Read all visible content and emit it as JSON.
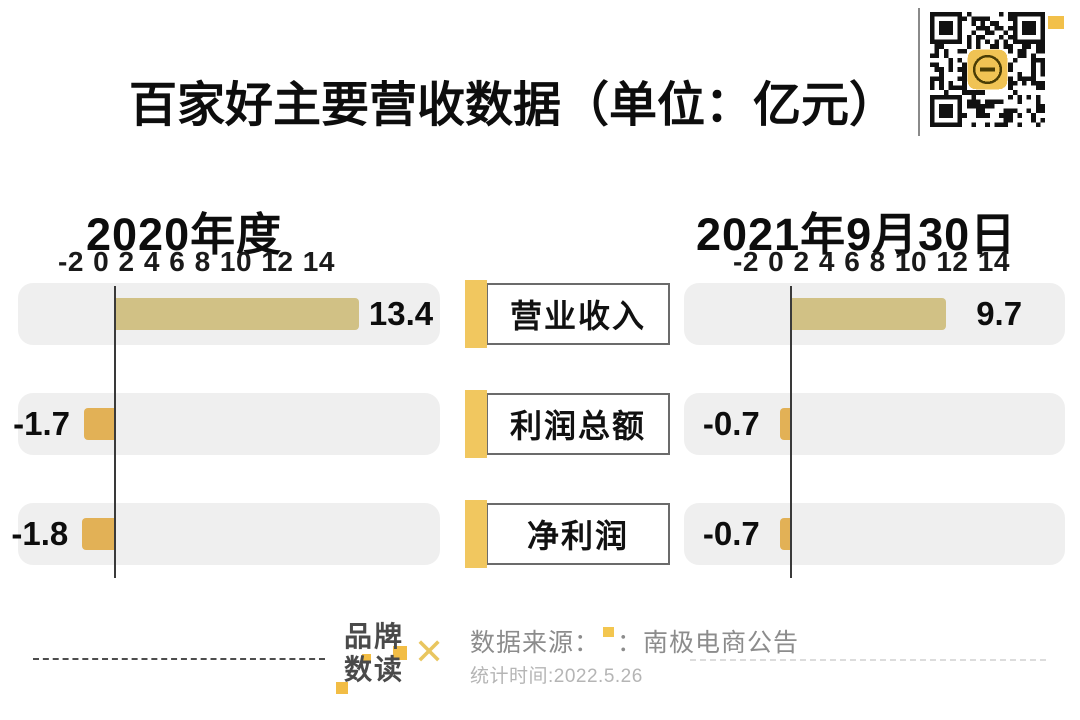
{
  "title": "百家好主要营收数据（单位：亿元）",
  "chart_data": {
    "type": "bar",
    "orientation": "horizontal",
    "title": "百家好主要营收数据（单位：亿元）",
    "unit": "亿元",
    "categories": [
      "营业收入",
      "利润总额",
      "净利润"
    ],
    "series": [
      {
        "name": "2020年度",
        "values": [
          13.4,
          -1.7,
          -1.8
        ]
      },
      {
        "name": "2021年9月30日",
        "values": [
          9.7,
          -0.7,
          -0.7
        ]
      }
    ],
    "x_ticks": [
      -2,
      0,
      2,
      4,
      6,
      8,
      10,
      12,
      14
    ],
    "xlim": [
      -2,
      14
    ],
    "grid": false,
    "legend_position": "panel-headers"
  },
  "panels": [
    {
      "header": "2020年度",
      "axis_ticks": "-2 0 2 4 6 8 10 12 14",
      "value_labels": [
        "13.4",
        "-1.7",
        "-1.8"
      ]
    },
    {
      "header": "2021年9月30日",
      "axis_ticks": "-2 0 2 4 6 8 10 12 14",
      "value_labels": [
        "9.7",
        "-0.7",
        "-0.7"
      ]
    }
  ],
  "category_labels": [
    "营业收入",
    "利润总额",
    "净利润"
  ],
  "footer": {
    "logo_line1": "品牌",
    "logo_line2": "数读",
    "x_mark": "✕",
    "source_prefix": "数据来源：",
    "source_colon": "：",
    "source_name": "南极电商公告",
    "stat_time": "统计时间:2022.5.26"
  },
  "colors": {
    "bar_positive": "#d1c185",
    "bar_negative": "#e2b156",
    "label_accent": "#f1c75f",
    "track_bg": "#efefef",
    "logo_yellow": "#f2bd45",
    "text_dark": "#0d0d0d",
    "source_gray": "#8c8c8c",
    "stat_gray": "#b5b5b5"
  }
}
